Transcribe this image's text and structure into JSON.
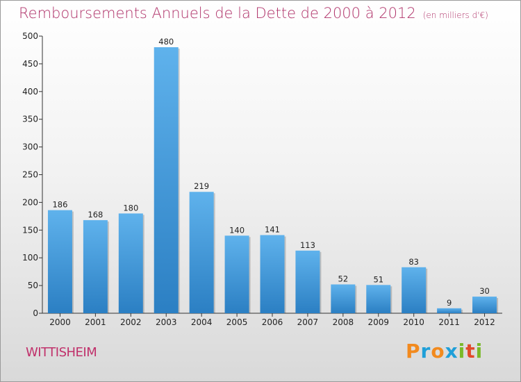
{
  "chart_data": {
    "type": "bar",
    "title": "Remboursements Annuels de la Dette de 2000 à 2012",
    "subtitle": "(en milliers d'€)",
    "categories": [
      "2000",
      "2001",
      "2002",
      "2003",
      "2004",
      "2005",
      "2006",
      "2007",
      "2008",
      "2009",
      "2010",
      "2011",
      "2012"
    ],
    "values": [
      186,
      168,
      180,
      480,
      219,
      140,
      141,
      113,
      52,
      51,
      83,
      9,
      30
    ],
    "ylim": [
      0,
      500
    ],
    "yticks": [
      0,
      50,
      100,
      150,
      200,
      250,
      300,
      350,
      400,
      450,
      500
    ],
    "grid": false,
    "bar_color": "#3f97d9"
  },
  "city": "WITTISHEIM",
  "logo": {
    "letters": [
      {
        "ch": "P",
        "color": "#f28a1e"
      },
      {
        "ch": "r",
        "color": "#1f9fd8"
      },
      {
        "ch": "o",
        "color": "#f28a1e"
      },
      {
        "ch": "x",
        "color": "#1f9fd8"
      },
      {
        "ch": "i",
        "color": "#7ab929"
      },
      {
        "ch": "t",
        "color": "#e24a2a"
      },
      {
        "ch": "i",
        "color": "#7ab929"
      }
    ]
  }
}
